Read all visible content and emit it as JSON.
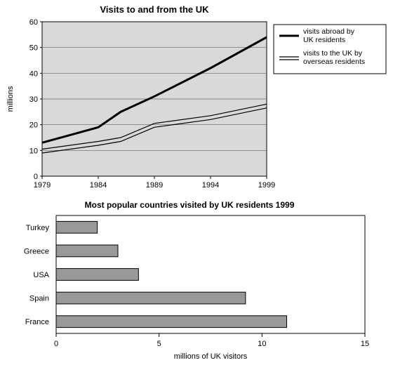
{
  "line_chart": {
    "type": "line",
    "title": "Visits to and from the UK",
    "title_fontsize": 13,
    "x_ticks": [
      1979,
      1984,
      1989,
      1994,
      1999
    ],
    "y_ticks": [
      0,
      10,
      20,
      30,
      40,
      50,
      60
    ],
    "ylim": [
      0,
      60
    ],
    "xlim": [
      1979,
      1999
    ],
    "ylabel": "millions",
    "plot_bg": "#d9d9d9",
    "grid_color": "#666666",
    "axis_color": "#000000",
    "series": [
      {
        "key": "abroad",
        "label": "visits abroad by UK residents",
        "color": "#000000",
        "line_width": 3,
        "dash": "",
        "points": [
          {
            "x": 1979,
            "y": 13
          },
          {
            "x": 1984,
            "y": 19
          },
          {
            "x": 1986,
            "y": 25
          },
          {
            "x": 1989,
            "y": 31
          },
          {
            "x": 1994,
            "y": 42
          },
          {
            "x": 1999,
            "y": 54
          }
        ]
      },
      {
        "key": "to_uk_upper",
        "label": "visits to the UK by overseas residents",
        "color": "#000000",
        "line_width": 1.2,
        "dash": "",
        "points": [
          {
            "x": 1979,
            "y": 10.5
          },
          {
            "x": 1984,
            "y": 13.5
          },
          {
            "x": 1986,
            "y": 15.0
          },
          {
            "x": 1989,
            "y": 20.5
          },
          {
            "x": 1994,
            "y": 23.5
          },
          {
            "x": 1999,
            "y": 28.0
          }
        ]
      },
      {
        "key": "to_uk_lower",
        "label": "",
        "color": "#000000",
        "line_width": 1.2,
        "dash": "",
        "points": [
          {
            "x": 1979,
            "y": 9.0
          },
          {
            "x": 1984,
            "y": 12.0
          },
          {
            "x": 1986,
            "y": 13.5
          },
          {
            "x": 1989,
            "y": 19.0
          },
          {
            "x": 1994,
            "y": 22.0
          },
          {
            "x": 1999,
            "y": 26.5
          }
        ]
      }
    ],
    "legend": {
      "border_color": "#000000",
      "bg": "#ffffff",
      "items": [
        {
          "style": "thick",
          "text": "visits abroad by UK residents"
        },
        {
          "style": "double",
          "text": "visits to the UK by overseas residents"
        }
      ]
    }
  },
  "bar_chart": {
    "type": "bar-horizontal",
    "title": "Most popular countries visited by UK residents 1999",
    "title_fontsize": 12,
    "xlabel": "millions of UK visitors",
    "x_ticks": [
      0,
      5,
      10,
      15
    ],
    "xlim": [
      0,
      15
    ],
    "plot_bg": "#ffffff",
    "border_color": "#000000",
    "bar_fill": "#999999",
    "bar_stroke": "#000000",
    "bar_height_ratio": 0.5,
    "categories": [
      "Turkey",
      "Greece",
      "USA",
      "Spain",
      "France"
    ],
    "values": [
      2.0,
      3.0,
      4.0,
      9.2,
      11.2
    ]
  }
}
